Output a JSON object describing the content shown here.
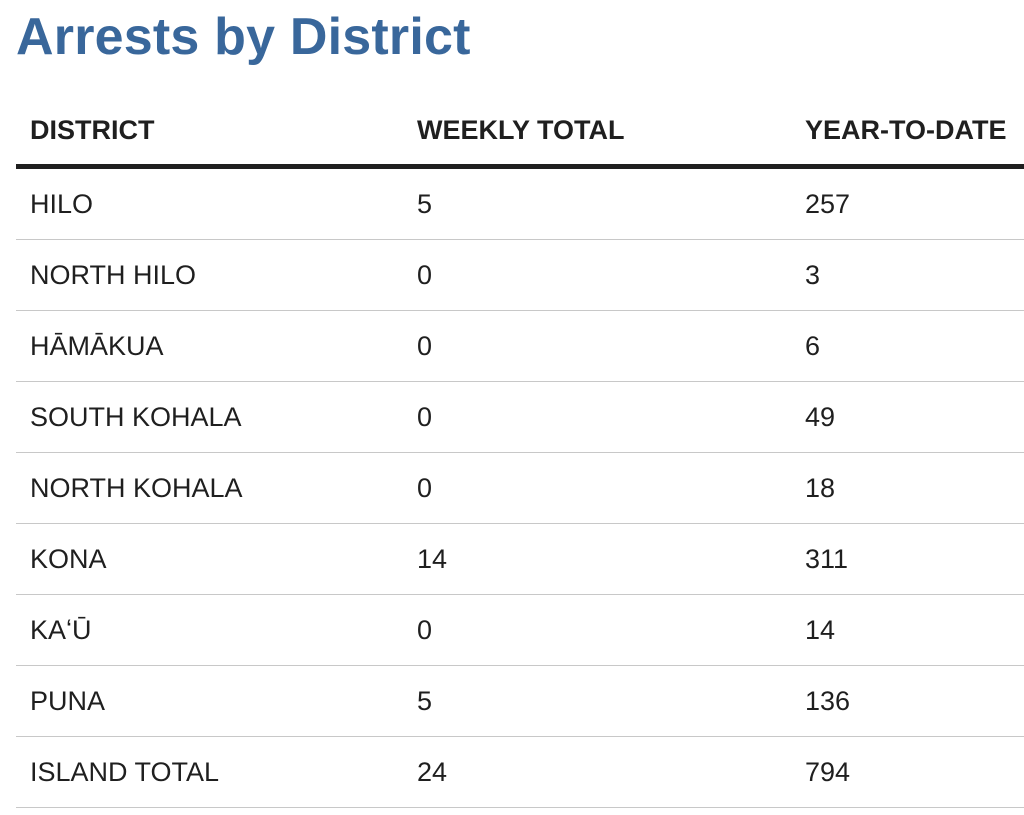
{
  "title": "Arrests by District",
  "colors": {
    "title": "#39679b",
    "text": "#1f1f1f",
    "rule_heavy": "#1f1f1f",
    "rule_light": "#c8c8c8"
  },
  "table": {
    "headers": [
      "DISTRICT",
      "WEEKLY TOTAL",
      "YEAR-TO-DATE"
    ],
    "rows": [
      [
        "HILO",
        "5",
        "257"
      ],
      [
        "NORTH HILO",
        "0",
        "3"
      ],
      [
        "HĀMĀKUA",
        "0",
        "6"
      ],
      [
        "SOUTH KOHALA",
        "0",
        "49"
      ],
      [
        "NORTH KOHALA",
        "0",
        "18"
      ],
      [
        "KONA",
        "14",
        "311"
      ],
      [
        "KAʻŪ",
        "0",
        "14"
      ],
      [
        "PUNA",
        "5",
        "136"
      ],
      [
        "ISLAND TOTAL",
        "24",
        "794"
      ]
    ]
  }
}
